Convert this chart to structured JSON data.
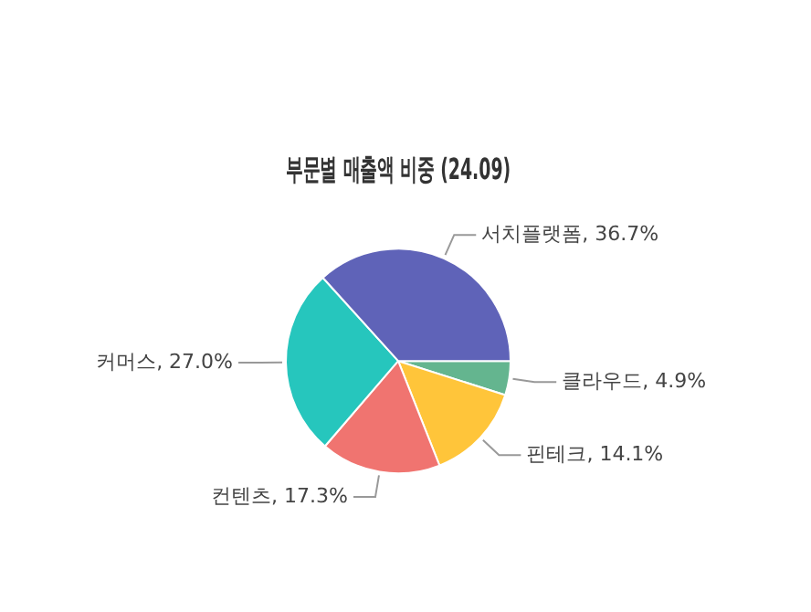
{
  "chart_data": {
    "type": "pie",
    "title": "부문별 매출액 비중 (24.09)",
    "categories": [
      "클라우드",
      "핀테크",
      "컨텐츠",
      "커머스",
      "서치플랫폼"
    ],
    "values": [
      4.9,
      14.1,
      17.3,
      27.0,
      36.7
    ],
    "value_labels": [
      "4.9%",
      "14.1%",
      "17.3%",
      "27.0%",
      "36.7%"
    ],
    "colors": [
      "#64b58f",
      "#ffc53a",
      "#f07470",
      "#26c6bd",
      "#5f63b8"
    ]
  }
}
